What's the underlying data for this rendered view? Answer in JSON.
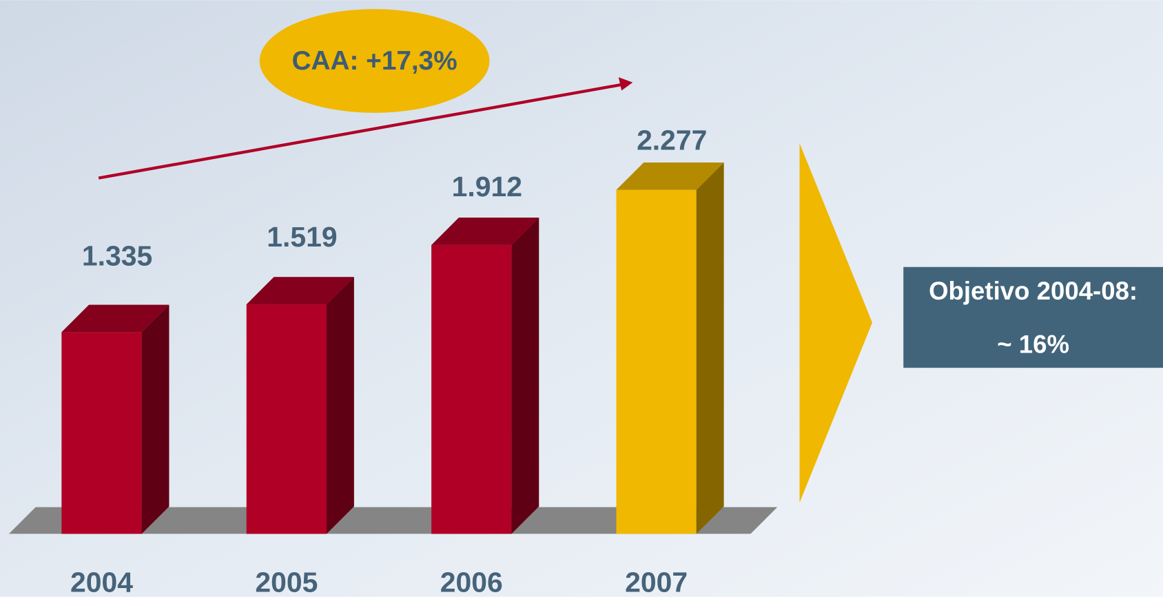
{
  "chart_data": {
    "type": "bar3d",
    "categories": [
      "2004",
      "2005",
      "2006",
      "2007"
    ],
    "values": [
      1335,
      1519,
      1912,
      2277
    ],
    "value_labels": [
      "1.335",
      "1.519",
      "1.912",
      "2.277"
    ],
    "colors": [
      "#b00026",
      "#b00026",
      "#b00026",
      "#f0b800"
    ],
    "annotations": [
      "CAA: +17,3%",
      "Objetivo 2004-08:",
      "~ 16%"
    ]
  }
}
